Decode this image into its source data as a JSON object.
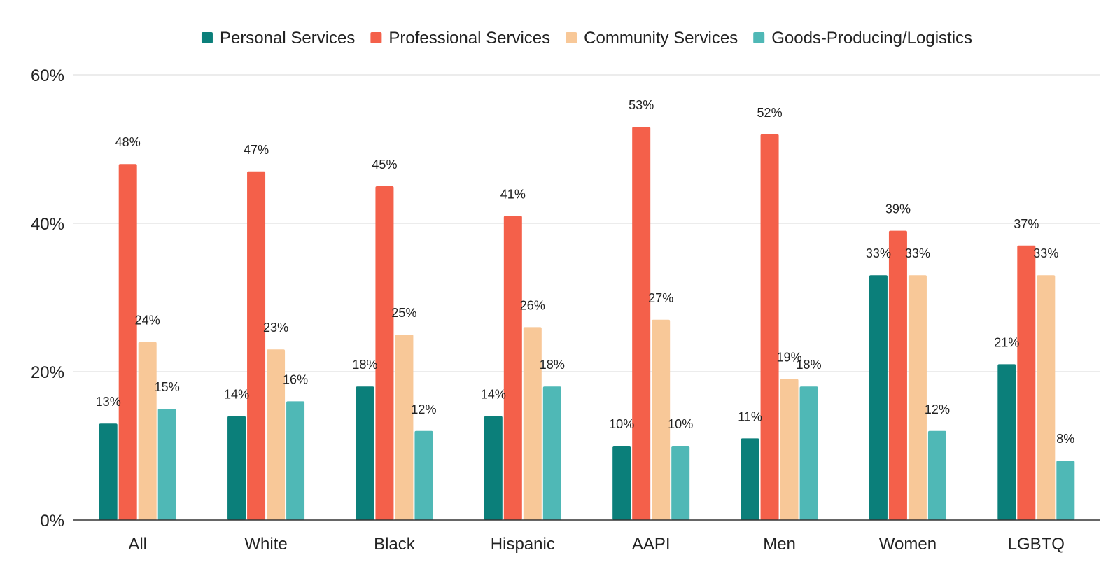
{
  "chart_data": {
    "type": "bar",
    "title": "",
    "xlabel": "",
    "ylabel": "",
    "categories": [
      "All",
      "White",
      "Black",
      "Hispanic",
      "AAPI",
      "Men",
      "Women",
      "LGBTQ"
    ],
    "series": [
      {
        "name": "Personal Services",
        "color": "#0b7f7a",
        "values": [
          13,
          14,
          18,
          14,
          10,
          11,
          33,
          21
        ],
        "labels": [
          "13%",
          "14%",
          "18%",
          "14%",
          "10%",
          "11%",
          "33%",
          "21%"
        ]
      },
      {
        "name": "Professional Services",
        "color": "#f4604a",
        "values": [
          48,
          47,
          45,
          41,
          53,
          52,
          39,
          37
        ],
        "labels": [
          "48%",
          "47%",
          "45%",
          "41%",
          "53%",
          "52%",
          "39%",
          "37%"
        ]
      },
      {
        "name": "Community Services",
        "color": "#f8c898",
        "values": [
          24,
          23,
          25,
          26,
          27,
          19,
          33,
          33
        ],
        "labels": [
          "24%",
          "23%",
          "25%",
          "26%",
          "27%",
          "19%",
          "33%",
          "33%"
        ]
      },
      {
        "name": "Goods-Producing/Logistics",
        "color": "#4fb8b6",
        "values": [
          15,
          16,
          12,
          18,
          10,
          18,
          12,
          8
        ],
        "labels": [
          "15%",
          "16%",
          "12%",
          "18%",
          "10%",
          "18%",
          "12%",
          "8%"
        ]
      }
    ],
    "ylim": [
      0,
      60
    ],
    "y_ticks": [
      0,
      20,
      40,
      60
    ],
    "y_tick_labels": [
      "0%",
      "20%",
      "40%",
      "60%"
    ],
    "grid": true,
    "legend_position": "top-center",
    "colors": {
      "gridline": "#d9d9d9",
      "axis": "#333333",
      "text": "#222222"
    }
  }
}
